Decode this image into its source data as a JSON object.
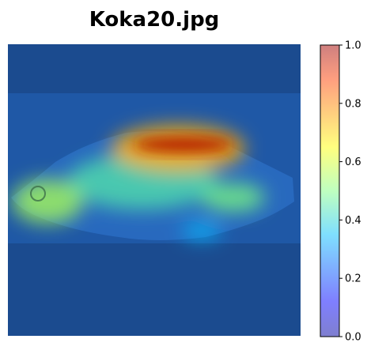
{
  "chart_data": {
    "type": "heatmap",
    "title": "Koka20.jpg",
    "xlabel": "",
    "ylabel": "",
    "axes_visible": false,
    "grid": false,
    "colormap": "jet",
    "overlay_alpha": 0.5,
    "colorbar": {
      "range": [
        0.0,
        1.0
      ],
      "ticks": [
        0.0,
        0.2,
        0.4,
        0.6,
        0.8,
        1.0
      ],
      "tick_labels": [
        "0.0",
        "0.2",
        "0.4",
        "0.6",
        "0.8",
        "1.0"
      ],
      "placement": "right"
    },
    "background_image": {
      "subject": "fish"
    },
    "hotspots": [
      {
        "region": "dorsal band above body",
        "value": 0.95
      },
      {
        "region": "upper body",
        "value": 0.75
      },
      {
        "region": "head",
        "value": 0.55
      },
      {
        "region": "caudal peduncle",
        "value": 0.5
      },
      {
        "region": "mid body",
        "value": 0.45
      },
      {
        "region": "belly fins",
        "value": 0.35
      }
    ]
  }
}
